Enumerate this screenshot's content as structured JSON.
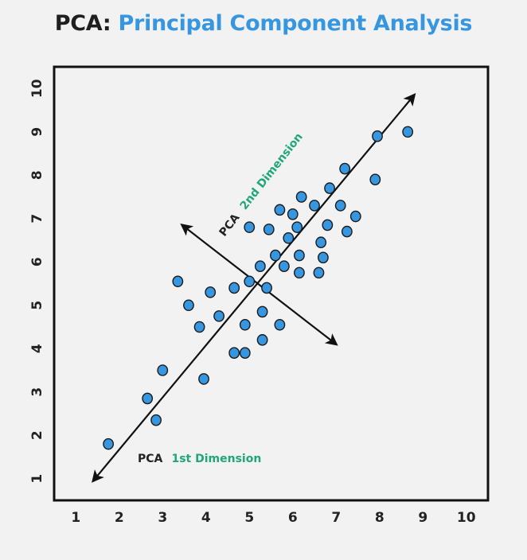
{
  "title": {
    "prefix": "PCA:",
    "main": "Principal Component Analysis"
  },
  "colors": {
    "title_prefix": "#1f1f1f",
    "title_main": "#3796e0",
    "point_fill": "#3796e0",
    "point_stroke": "#1a1a1a",
    "axis_label_green": "#1fa67a",
    "background": "#f2f2f2"
  },
  "chart_data": {
    "type": "scatter",
    "title": "PCA: Principal Component Analysis",
    "xlabel": "",
    "ylabel": "",
    "xlim": [
      0.5,
      10.5
    ],
    "ylim": [
      0.5,
      10.5
    ],
    "xticks": [
      1,
      2,
      3,
      4,
      5,
      6,
      7,
      8,
      9,
      10
    ],
    "yticks": [
      1,
      2,
      3,
      4,
      5,
      6,
      7,
      8,
      9,
      10
    ],
    "grid": false,
    "points": [
      {
        "x": 1.75,
        "y": 1.8
      },
      {
        "x": 2.65,
        "y": 2.85
      },
      {
        "x": 2.85,
        "y": 2.35
      },
      {
        "x": 3.0,
        "y": 3.5
      },
      {
        "x": 3.35,
        "y": 5.55
      },
      {
        "x": 3.6,
        "y": 5.0
      },
      {
        "x": 3.85,
        "y": 4.5
      },
      {
        "x": 3.95,
        "y": 3.3
      },
      {
        "x": 4.1,
        "y": 5.3
      },
      {
        "x": 4.3,
        "y": 4.75
      },
      {
        "x": 4.65,
        "y": 3.9
      },
      {
        "x": 4.65,
        "y": 5.4
      },
      {
        "x": 4.9,
        "y": 3.9
      },
      {
        "x": 4.9,
        "y": 4.55
      },
      {
        "x": 5.0,
        "y": 5.55
      },
      {
        "x": 5.0,
        "y": 6.8
      },
      {
        "x": 5.25,
        "y": 5.9
      },
      {
        "x": 5.3,
        "y": 4.2
      },
      {
        "x": 5.3,
        "y": 4.85
      },
      {
        "x": 5.4,
        "y": 5.4
      },
      {
        "x": 5.45,
        "y": 6.75
      },
      {
        "x": 5.6,
        "y": 6.15
      },
      {
        "x": 5.7,
        "y": 4.55
      },
      {
        "x": 5.7,
        "y": 7.2
      },
      {
        "x": 5.8,
        "y": 5.9
      },
      {
        "x": 5.9,
        "y": 6.55
      },
      {
        "x": 6.0,
        "y": 7.1
      },
      {
        "x": 6.1,
        "y": 6.8
      },
      {
        "x": 6.15,
        "y": 5.75
      },
      {
        "x": 6.15,
        "y": 6.15
      },
      {
        "x": 6.2,
        "y": 7.5
      },
      {
        "x": 6.5,
        "y": 7.3
      },
      {
        "x": 6.6,
        "y": 5.75
      },
      {
        "x": 6.65,
        "y": 6.45
      },
      {
        "x": 6.7,
        "y": 6.1
      },
      {
        "x": 6.8,
        "y": 6.85
      },
      {
        "x": 6.85,
        "y": 7.7
      },
      {
        "x": 7.1,
        "y": 7.3
      },
      {
        "x": 7.2,
        "y": 8.15
      },
      {
        "x": 7.25,
        "y": 6.7
      },
      {
        "x": 7.45,
        "y": 7.05
      },
      {
        "x": 7.9,
        "y": 7.9
      },
      {
        "x": 7.95,
        "y": 8.9
      },
      {
        "x": 8.65,
        "y": 9.0
      }
    ],
    "annotations": [
      {
        "kind": "arrow-double",
        "name": "pca-1st-axis",
        "from": [
          1.4,
          0.95
        ],
        "to": [
          8.8,
          9.85
        ]
      },
      {
        "kind": "arrow-double",
        "name": "pca-2nd-axis",
        "from": [
          3.45,
          6.85
        ],
        "to": [
          7.0,
          4.1
        ]
      }
    ],
    "dimension_labels": {
      "first": {
        "dark": "PCA",
        "green": "1st  Dimension"
      },
      "second": {
        "dark": "PCA",
        "green": "2nd  Dimension"
      }
    }
  }
}
